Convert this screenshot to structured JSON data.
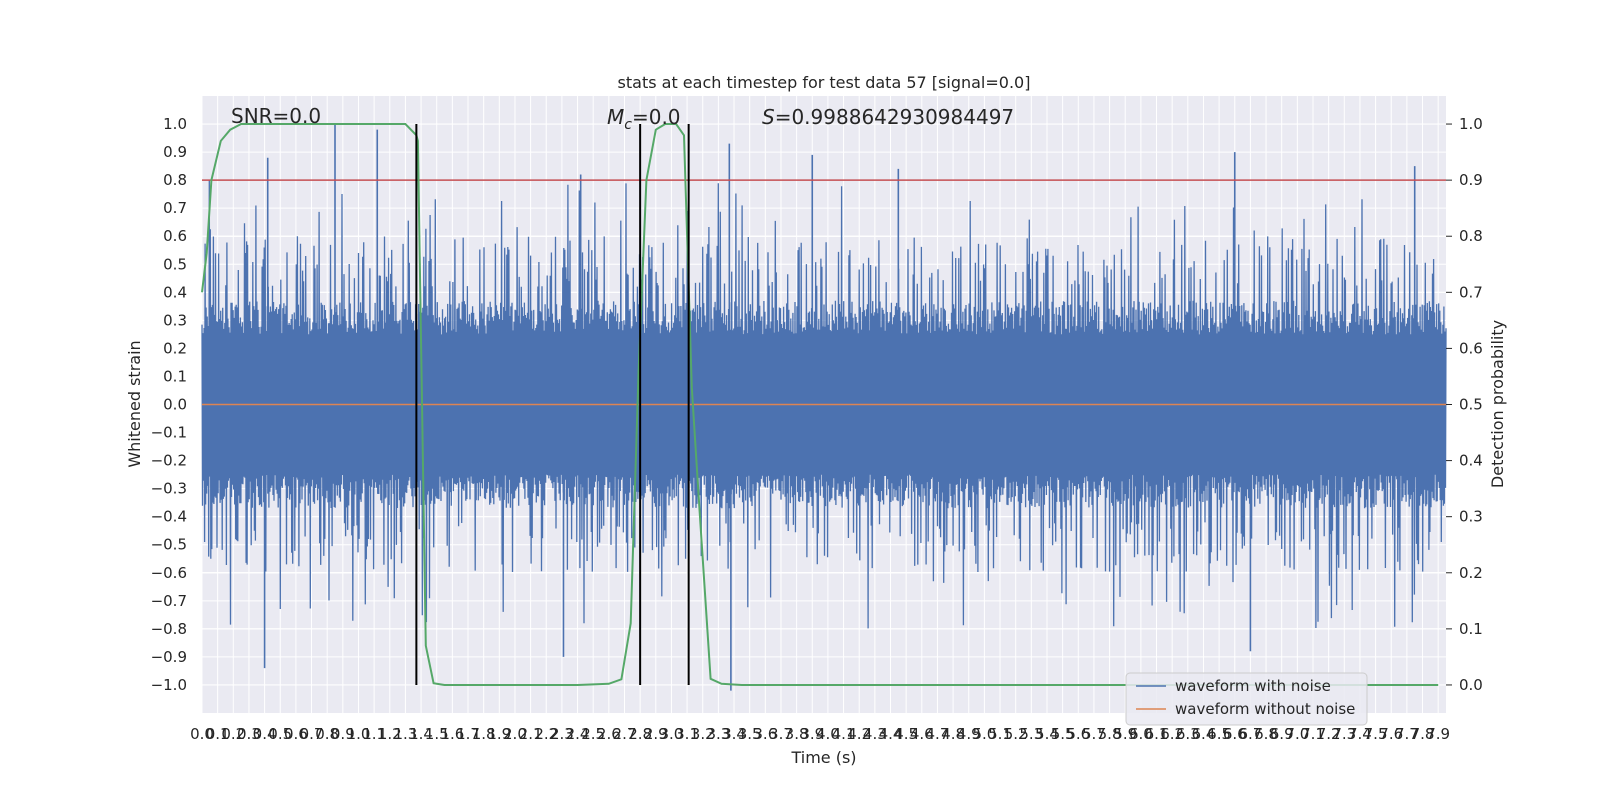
{
  "chart_data": {
    "type": "line",
    "title": "stats at each timestep for test data 57 [signal=0.0]",
    "xlabel": "Time (s)",
    "ylabel": "Whitened strain",
    "y2label": "Detection probability",
    "xlim": [
      0.0,
      7.95
    ],
    "ylim": [
      -1.1,
      1.1
    ],
    "y2lim": [
      -0.05,
      1.05
    ],
    "x_ticks": [
      "0.0",
      "0.1",
      "0.2",
      "0.3",
      "0.4",
      "0.5",
      "0.6",
      "0.7",
      "0.8",
      "0.9",
      "1.0",
      "1.1",
      "1.2",
      "1.3",
      "1.4",
      "1.5",
      "1.6",
      "1.7",
      "1.8",
      "1.9",
      "2.0",
      "2.1",
      "2.2",
      "2.3",
      "2.4",
      "2.5",
      "2.6",
      "2.7",
      "2.8",
      "2.9",
      "3.0",
      "3.1",
      "3.2",
      "3.3",
      "3.4",
      "3.5",
      "3.6",
      "3.7",
      "3.8",
      "3.9",
      "4.0",
      "4.1",
      "4.2",
      "4.3",
      "4.4",
      "4.5",
      "4.6",
      "4.7",
      "4.8",
      "4.9",
      "5.0",
      "5.1",
      "5.2",
      "5.3",
      "5.4",
      "5.5",
      "5.6",
      "5.7",
      "5.8",
      "5.9",
      "6.0",
      "6.1",
      "6.2",
      "6.3",
      "6.4",
      "6.5",
      "6.6",
      "6.7",
      "6.8",
      "6.9",
      "7.0",
      "7.1",
      "7.2",
      "7.3",
      "7.4",
      "7.5",
      "7.6",
      "7.7",
      "7.8",
      "7.9"
    ],
    "y_ticks": [
      "1.0",
      "0.9",
      "0.8",
      "0.7",
      "0.6",
      "0.5",
      "0.4",
      "0.3",
      "0.2",
      "0.1",
      "0.0",
      "−0.1",
      "−0.2",
      "−0.3",
      "−0.4",
      "−0.5",
      "−0.6",
      "−0.7",
      "−0.8",
      "−0.9",
      "−1.0"
    ],
    "y2_ticks": [
      "1.0",
      "0.9",
      "0.8",
      "0.7",
      "0.6",
      "0.5",
      "0.4",
      "0.3",
      "0.2",
      "0.1",
      "0.0"
    ],
    "grid": true,
    "legend_position": "lower-right",
    "series": [
      {
        "name": "waveform with noise",
        "axis": "left",
        "color": "#4c72b0",
        "envelope": "noise ~ ±0.3–0.6 with spikes up to ±1.0",
        "notable_spikes": [
          {
            "x": 0.42,
            "y": 0.88
          },
          {
            "x": 0.85,
            "y": 1.0
          },
          {
            "x": 1.12,
            "y": 0.98
          },
          {
            "x": 2.42,
            "y": 0.82
          },
          {
            "x": 3.37,
            "y": 0.93
          },
          {
            "x": 3.38,
            "y": -1.02
          },
          {
            "x": 3.9,
            "y": 0.89
          },
          {
            "x": 4.45,
            "y": 0.84
          },
          {
            "x": 6.6,
            "y": 0.9
          },
          {
            "x": 6.7,
            "y": -0.88
          },
          {
            "x": 7.75,
            "y": 0.85
          },
          {
            "x": 0.4,
            "y": -0.94
          },
          {
            "x": 2.31,
            "y": -0.9
          }
        ]
      },
      {
        "name": "waveform without noise",
        "axis": "left",
        "color": "#dd8452",
        "x": [
          0.0,
          7.95
        ],
        "y": [
          0.0,
          0.0
        ]
      },
      {
        "name": "",
        "axis": "right",
        "color": "#55a868",
        "x": [
          0.0,
          0.03,
          0.06,
          0.12,
          0.18,
          0.25,
          0.4,
          0.6,
          1.0,
          1.3,
          1.37,
          1.38,
          1.43,
          1.48,
          1.55,
          1.8,
          2.4,
          2.6,
          2.68,
          2.74,
          2.79,
          2.84,
          2.9,
          2.96,
          3.03,
          3.08,
          3.13,
          3.18,
          3.25,
          3.32,
          3.45,
          3.6,
          4.0,
          5.0,
          6.0,
          7.0,
          7.9
        ],
        "y": [
          0.7,
          0.77,
          0.9,
          0.97,
          0.99,
          1.0,
          1.0,
          1.0,
          1.0,
          1.0,
          0.98,
          0.97,
          0.07,
          0.003,
          0.0,
          0.0,
          0.0,
          0.002,
          0.01,
          0.11,
          0.56,
          0.9,
          0.99,
          1.0,
          1.0,
          0.98,
          0.53,
          0.31,
          0.011,
          0.002,
          0.0,
          0.0,
          0.0,
          0.0,
          0.0,
          0.0,
          0.0
        ]
      }
    ],
    "threshold": {
      "axis": "right",
      "y": 0.9,
      "color": "#c44e52"
    },
    "vlines": [
      1.37,
      2.8,
      3.11
    ],
    "vline_color": "#000000",
    "annotations": {
      "snr": "SNR=0.0",
      "mc_symbol": "M",
      "mc_subscript": "c",
      "mc_value": "=0.0",
      "s_symbol": "S",
      "s_value": "=0.9988642930984497"
    }
  },
  "colors": {
    "axes_bg": "#eaeaf2",
    "grid": "#ffffff"
  }
}
